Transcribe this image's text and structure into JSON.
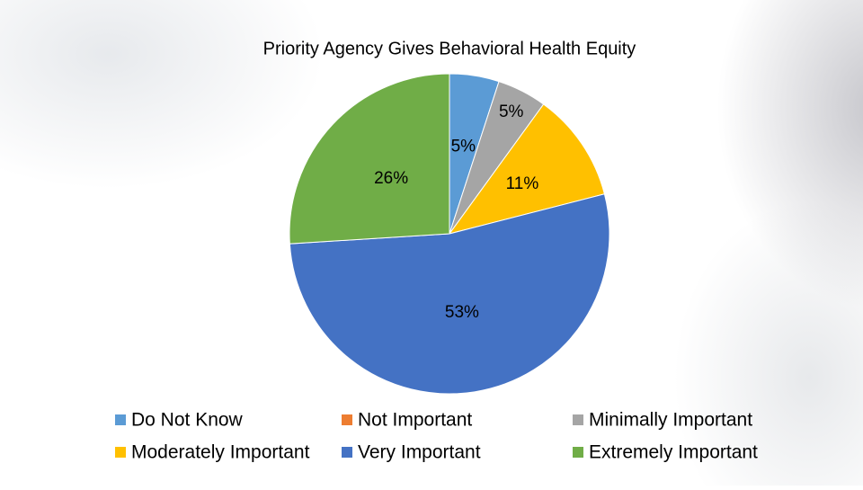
{
  "chart_data": {
    "type": "pie",
    "title": "Priority Agency Gives Behavioral Health Equity",
    "categories": [
      "Do Not Know",
      "Not Important",
      "Minimally Important",
      "Moderately Important",
      "Very Important",
      "Extremely Important"
    ],
    "values": [
      5,
      0,
      5,
      11,
      53,
      26
    ],
    "colors": [
      "#5b9bd5",
      "#ed7d31",
      "#a5a5a5",
      "#ffc000",
      "#4472c4",
      "#70ad47"
    ],
    "legend": "bottom"
  }
}
